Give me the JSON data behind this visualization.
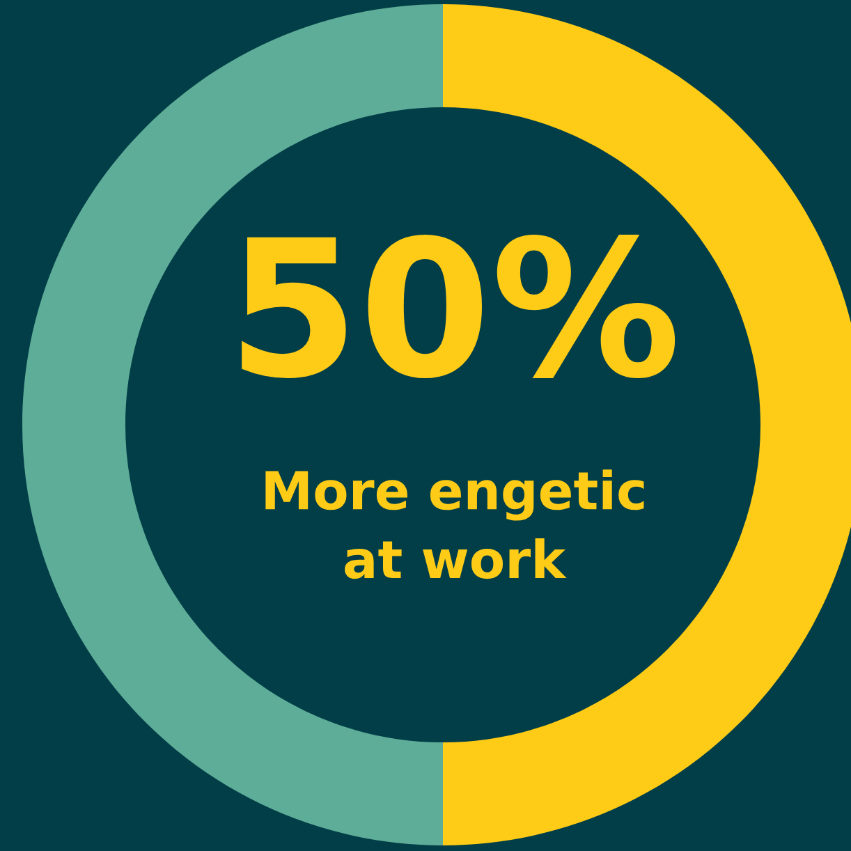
{
  "chart_data": {
    "type": "donut",
    "categories": [
      null,
      null
    ],
    "values": [
      50,
      50
    ],
    "colors": [
      "#fecb16",
      "#5ead98"
    ],
    "annotations": [
      "50%",
      "More engetic\nat work"
    ]
  }
}
